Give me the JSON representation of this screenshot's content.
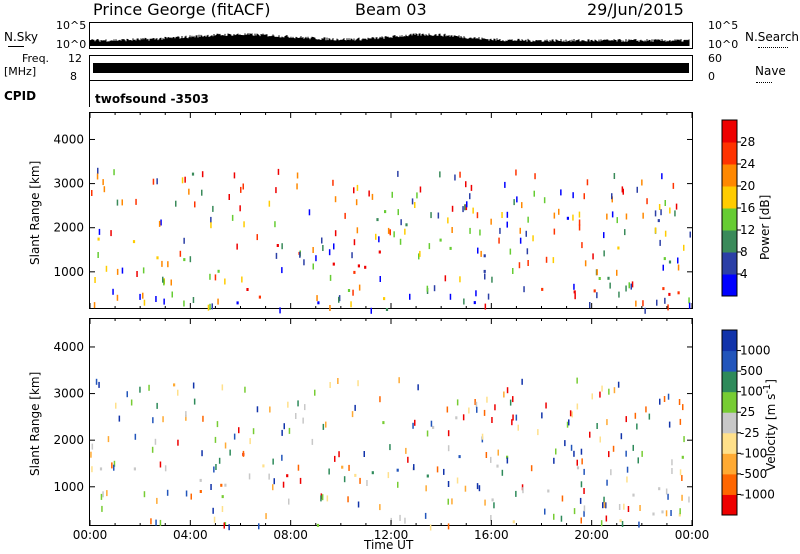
{
  "header": {
    "station": "Prince George (fitACF)",
    "beam": "Beam 03",
    "date": "29/Jun/2015"
  },
  "noise_panel": {
    "left_label": "N.Sky",
    "left_top": "10^5",
    "left_bottom": "10^0",
    "right_top": "10^5",
    "right_bottom": "10^0",
    "right_label": "N.Search"
  },
  "freq_panel": {
    "left_label_1": "Freq.",
    "left_label_2": "[MHz]",
    "left_top": "12",
    "left_bottom": "8",
    "right_top": "60",
    "right_bottom": "0",
    "right_label": "Nave"
  },
  "cpid": {
    "label": "CPID",
    "value": "twofsound  -3503"
  },
  "chart_data": [
    {
      "type": "heatmap",
      "name": "power",
      "ylabel": "Slant Range [km]",
      "ylim": [
        180,
        4600
      ],
      "yticks": [
        "1000",
        "2000",
        "3000",
        "4000"
      ],
      "xlim": [
        0,
        24
      ],
      "colorbar_label": "Power [dB]",
      "colorbar_ticks": [
        "4",
        "8",
        "12",
        "16",
        "20",
        "24",
        "28"
      ],
      "colors": [
        "#0000ff",
        "#2b3fa6",
        "#3a8a5a",
        "#66cc33",
        "#ffcc00",
        "#ff8800",
        "#ff3300",
        "#ee0000"
      ],
      "regions": [
        {
          "t0": 0.3,
          "t1": 7.0,
          "r0": 1500,
          "r1": 1800,
          "c": 4
        },
        {
          "t0": 1.0,
          "t1": 6.0,
          "r0": 900,
          "r1": 1500,
          "c": 3
        },
        {
          "t0": 3.0,
          "t1": 4.5,
          "r0": 2900,
          "r1": 3400,
          "c": 3
        },
        {
          "t0": 3.5,
          "t1": 7.5,
          "r0": 400,
          "r1": 900,
          "c": 6
        },
        {
          "t0": 6.0,
          "t1": 8.5,
          "r0": 900,
          "r1": 1700,
          "c": 6
        },
        {
          "t0": 9.0,
          "t1": 13.5,
          "r0": 900,
          "r1": 1700,
          "c": 6
        },
        {
          "t0": 9.5,
          "t1": 12.5,
          "r0": 1100,
          "r1": 1500,
          "c": 7
        },
        {
          "t0": 8.5,
          "t1": 12.0,
          "r0": 400,
          "r1": 900,
          "c": 4
        },
        {
          "t0": 10.0,
          "t1": 15.0,
          "r0": 2000,
          "r1": 2600,
          "c": 2
        },
        {
          "t0": 13.0,
          "t1": 17.0,
          "r0": 1300,
          "r1": 1800,
          "c": 3
        },
        {
          "t0": 16.0,
          "t1": 23.9,
          "r0": 400,
          "r1": 800,
          "c": 6
        },
        {
          "t0": 17.0,
          "t1": 23.9,
          "r0": 500,
          "r1": 700,
          "c": 7
        },
        {
          "t0": 15.0,
          "t1": 23.9,
          "r0": 800,
          "r1": 1400,
          "c": 2
        },
        {
          "t0": 21.0,
          "t1": 23.0,
          "r0": 1500,
          "r1": 1800,
          "c": 5
        },
        {
          "t0": 19.0,
          "t1": 23.9,
          "r0": 2000,
          "r1": 2400,
          "c": 1
        },
        {
          "t0": 0.2,
          "t1": 23.9,
          "r0": 180,
          "r1": 350,
          "c": 1
        }
      ]
    },
    {
      "type": "heatmap",
      "name": "velocity",
      "ylabel": "Slant Range [km]",
      "ylim": [
        180,
        4600
      ],
      "yticks": [
        "1000",
        "2000",
        "3000",
        "4000"
      ],
      "xlim": [
        0,
        24
      ],
      "xticks": [
        "00:00",
        "04:00",
        "08:00",
        "12:00",
        "16:00",
        "20:00",
        "00:00"
      ],
      "xlabel": "Time UT",
      "colorbar_label": "Velocity [m s^-1]",
      "colorbar_ticks": [
        "-1000",
        "-500",
        "-100",
        "-25",
        "25",
        "100",
        "500",
        "1000"
      ],
      "colors": [
        "#ee0000",
        "#ff6600",
        "#ffaa33",
        "#ffe08a",
        "#c8c8c8",
        "#77cc33",
        "#2e8a5a",
        "#2255bb",
        "#1133aa"
      ],
      "regions": [
        {
          "t0": 0.3,
          "t1": 7.0,
          "r0": 1400,
          "r1": 1800,
          "c": 4
        },
        {
          "t0": 1.0,
          "t1": 6.0,
          "r0": 800,
          "r1": 1400,
          "c": 4
        },
        {
          "t0": 3.0,
          "t1": 4.5,
          "r0": 2900,
          "r1": 3400,
          "c": 3
        },
        {
          "t0": 3.5,
          "t1": 6.5,
          "r0": 600,
          "r1": 1100,
          "c": 2
        },
        {
          "t0": 6.0,
          "t1": 8.0,
          "r0": 1100,
          "r1": 1800,
          "c": 0
        },
        {
          "t0": 9.5,
          "t1": 11.5,
          "r0": 900,
          "r1": 1800,
          "c": 2
        },
        {
          "t0": 11.0,
          "t1": 15.5,
          "r0": 1200,
          "r1": 1700,
          "c": 6
        },
        {
          "t0": 11.5,
          "t1": 14.5,
          "r0": 1250,
          "r1": 1600,
          "c": 7
        },
        {
          "t0": 12.0,
          "t1": 17.0,
          "r0": 1300,
          "r1": 1800,
          "c": 5
        },
        {
          "t0": 15.0,
          "t1": 23.9,
          "r0": 400,
          "r1": 1100,
          "c": 4
        },
        {
          "t0": 19.0,
          "t1": 23.9,
          "r0": 1400,
          "r1": 1800,
          "c": 4
        },
        {
          "t0": 10.0,
          "t1": 15.0,
          "r0": 2000,
          "r1": 2600,
          "c": 4
        },
        {
          "t0": 0.2,
          "t1": 23.9,
          "r0": 180,
          "r1": 350,
          "c": 4
        }
      ]
    }
  ]
}
